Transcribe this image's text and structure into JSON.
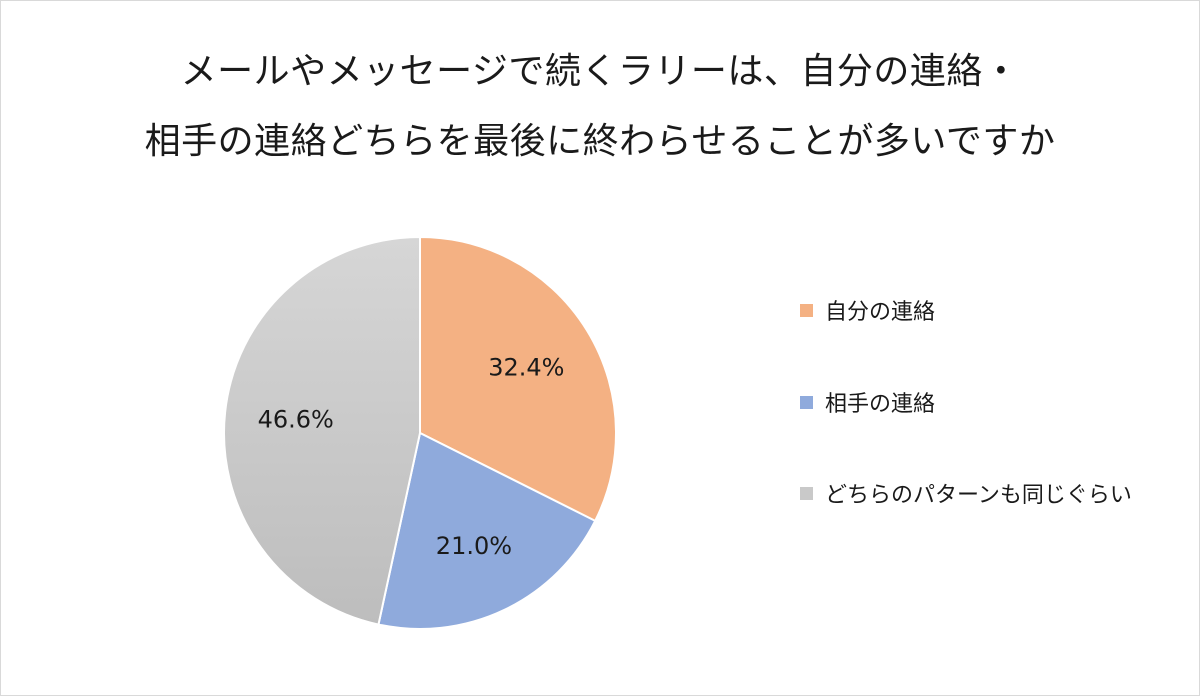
{
  "chart_data": {
    "type": "pie",
    "title_lines": [
      "メールやメッセージで続くラリーは、自分の連絡・",
      "相手の連絡どちらを最後に終わらせることが多いですか"
    ],
    "slices": [
      {
        "name": "自分の連絡",
        "value": 32.4,
        "label": "32.4%",
        "color": "#f4b183"
      },
      {
        "name": "相手の連絡",
        "value": 21.0,
        "label": "21.0%",
        "color": "#8faadc"
      },
      {
        "name": "どちらのパターンも同じぐらい",
        "value": 46.6,
        "label": "46.6%",
        "color": "#c9c9c9"
      }
    ],
    "start_angle": "12 o'clock",
    "direction": "clockwise",
    "legend_position": "right"
  }
}
